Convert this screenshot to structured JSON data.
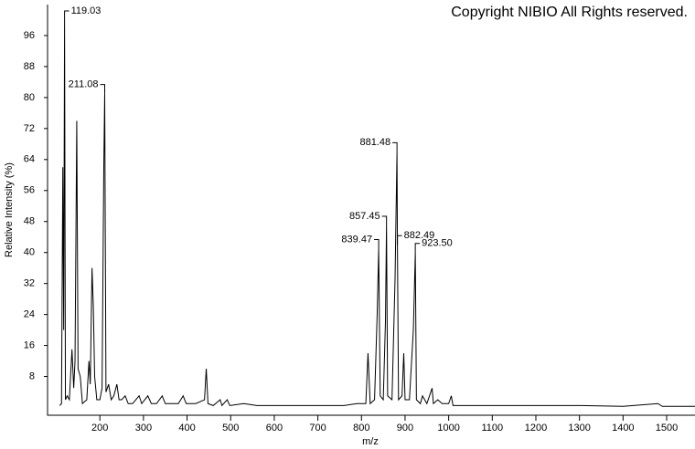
{
  "chart_data": {
    "type": "line",
    "title": "Copyright NIBIO All Rights reserved.",
    "x_label": "m/z",
    "y_label": "Relative Intensity (%)",
    "xlim": [
      80,
      1565
    ],
    "ylim": [
      -2,
      104
    ],
    "xticks": [
      200,
      300,
      400,
      500,
      600,
      700,
      800,
      900,
      1000,
      1100,
      1200,
      1300,
      1400,
      1500
    ],
    "yticks": [
      8,
      16,
      24,
      32,
      40,
      48,
      56,
      64,
      72,
      80,
      88,
      96
    ],
    "series": [
      {
        "color": "#000000",
        "x": [
          108,
          112,
          115,
          117,
          119.03,
          121,
          125,
          130,
          136,
          140,
          143,
          147,
          150,
          155,
          160,
          170,
          175,
          178,
          182,
          185,
          188,
          193,
          200,
          205,
          209,
          211.08,
          214,
          220,
          226,
          232,
          239,
          244,
          250,
          258,
          265,
          275,
          290,
          296,
          310,
          318,
          330,
          343,
          350,
          370,
          380,
          391,
          398,
          420,
          440,
          444,
          448,
          460,
          476,
          480,
          492,
          498,
          530,
          560,
          600,
          640,
          700,
          760,
          790,
          800,
          810,
          815,
          820,
          830,
          836,
          839.47,
          843,
          850,
          855,
          857.45,
          860,
          870,
          877,
          881.48,
          882.49,
          885,
          893,
          897,
          900,
          910,
          919,
          923.5,
          926,
          935,
          940,
          950,
          962,
          965,
          975,
          985,
          1000,
          1006,
          1010,
          1100,
          1200,
          1300,
          1400,
          1480,
          1490,
          1565
        ],
        "values": [
          0.5,
          1,
          62,
          20,
          100,
          2,
          3,
          2,
          15,
          5,
          12,
          74,
          10,
          8,
          1,
          2,
          12,
          6,
          36,
          26,
          8,
          2,
          2,
          5,
          62,
          81,
          4,
          6,
          2,
          3,
          6,
          2,
          2,
          3,
          1,
          1,
          3,
          1,
          3,
          1,
          1,
          3,
          1,
          1,
          1,
          3,
          1,
          1,
          2,
          10,
          1,
          0.5,
          2,
          0.5,
          2,
          0.5,
          1,
          0.5,
          0.5,
          0.5,
          0.5,
          0.5,
          1,
          1,
          1,
          14,
          1,
          2,
          24,
          41,
          3,
          2,
          22,
          47,
          3,
          2,
          33,
          66,
          42,
          2,
          3,
          14,
          2,
          2,
          20,
          40,
          2,
          1,
          3,
          1,
          5,
          1,
          2,
          1,
          1,
          3,
          0.5,
          0.5,
          0.5,
          0.5,
          0.3,
          1,
          0.3,
          0.3
        ]
      }
    ],
    "annotations": [
      {
        "label": "119.03",
        "x": 119.03,
        "y": 100,
        "side": "right"
      },
      {
        "label": "211.08",
        "x": 211.08,
        "y": 81,
        "side": "left"
      },
      {
        "label": "839.47",
        "x": 839.47,
        "y": 41,
        "side": "left"
      },
      {
        "label": "857.45",
        "x": 857.45,
        "y": 47,
        "side": "left"
      },
      {
        "label": "881.48",
        "x": 881.48,
        "y": 66,
        "side": "left"
      },
      {
        "label": "882.49",
        "x": 882.49,
        "y": 42,
        "side": "right"
      },
      {
        "label": "923.50",
        "x": 923.5,
        "y": 40,
        "side": "right"
      }
    ]
  }
}
